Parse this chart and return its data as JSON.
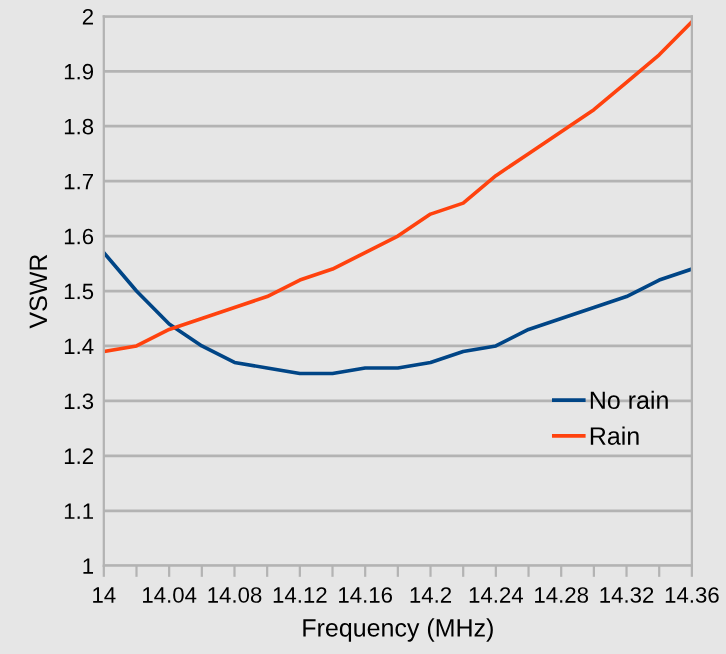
{
  "chart_data": {
    "type": "line",
    "xlabel": "Frequency (MHz)",
    "ylabel": "VSWR",
    "x": [
      14,
      14.02,
      14.04,
      14.06,
      14.08,
      14.1,
      14.12,
      14.14,
      14.16,
      14.18,
      14.2,
      14.22,
      14.24,
      14.26,
      14.28,
      14.3,
      14.32,
      14.34,
      14.36
    ],
    "series": [
      {
        "name": "No rain",
        "color": "#004586",
        "values": [
          1.57,
          1.5,
          1.44,
          1.4,
          1.37,
          1.36,
          1.35,
          1.35,
          1.36,
          1.36,
          1.37,
          1.39,
          1.4,
          1.43,
          1.45,
          1.47,
          1.49,
          1.52,
          1.54
        ]
      },
      {
        "name": "Rain",
        "color": "#ff420e",
        "values": [
          1.39,
          1.4,
          1.43,
          1.45,
          1.47,
          1.49,
          1.52,
          1.54,
          1.57,
          1.6,
          1.64,
          1.66,
          1.71,
          1.75,
          1.79,
          1.83,
          1.88,
          1.93,
          1.99
        ]
      }
    ],
    "xlim": [
      14,
      14.36
    ],
    "xticks": [
      14,
      {
        "value": 14.02,
        "label": null
      },
      14.04,
      {
        "value": 14.06,
        "label": null
      },
      14.08,
      {
        "value": 14.1,
        "label": null
      },
      14.12,
      {
        "value": 14.14,
        "label": null
      },
      14.16,
      {
        "value": 14.18,
        "label": null
      },
      14.2,
      {
        "value": 14.22,
        "label": null
      },
      14.24,
      {
        "value": 14.26,
        "label": null
      },
      14.28,
      {
        "value": 14.3,
        "label": null
      },
      14.32,
      {
        "value": 14.34,
        "label": null
      },
      14.36
    ],
    "ylim": [
      1,
      2
    ],
    "yticks": [
      1,
      1.1,
      1.2,
      1.3,
      1.4,
      1.5,
      1.6,
      1.7,
      1.8,
      1.9,
      2
    ],
    "grid": "y",
    "legend": "bottom right",
    "marker": "none",
    "line_style": "solid"
  }
}
